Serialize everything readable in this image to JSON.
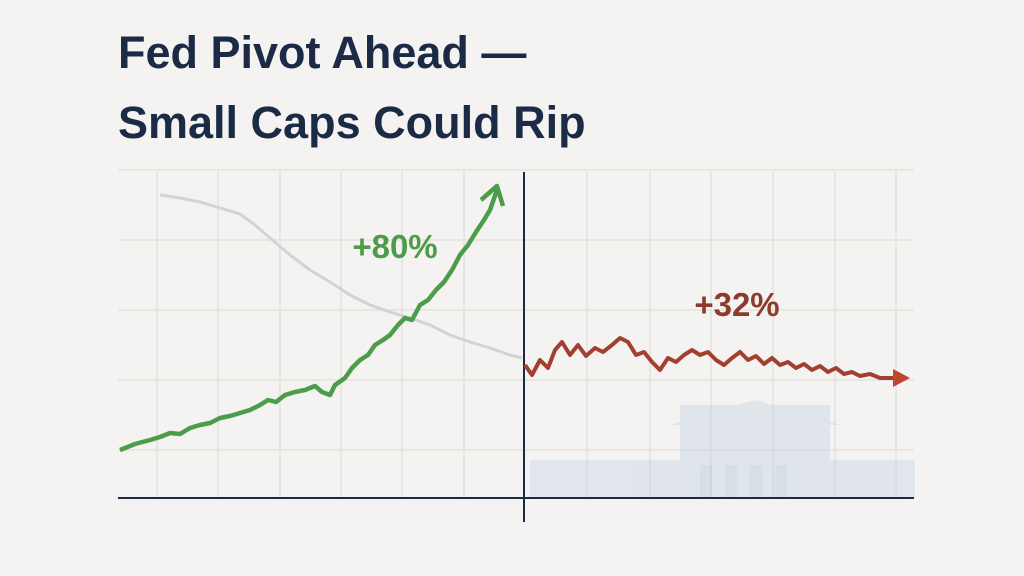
{
  "header": {
    "title_lines": [
      "Fed Pivot Ahead —",
      "Small Caps Could Rip"
    ]
  },
  "annotations": {
    "left_change": "+80%",
    "right_change": "+32%"
  }
}
